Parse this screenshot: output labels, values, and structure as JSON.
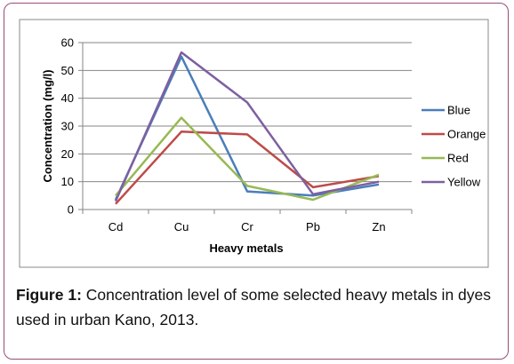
{
  "caption": {
    "label": "Figure 1:",
    "text": " Concentration level of some selected heavy metals in dyes used in urban Kano, 2013."
  },
  "chart_data": {
    "type": "line",
    "title": "",
    "xlabel": "Heavy metals",
    "ylabel": "Concentration (mg/l)",
    "ylim": [
      0,
      60
    ],
    "yticks": [
      0,
      10,
      20,
      30,
      40,
      50,
      60
    ],
    "grid": "horizontal",
    "legend": "right",
    "categories": [
      "Cd",
      "Cu",
      "Cr",
      "Pb",
      "Zn"
    ],
    "series": [
      {
        "name": "Blue",
        "color": "#4a7ebb",
        "values": [
          3.5,
          55,
          6.5,
          5,
          9
        ]
      },
      {
        "name": "Orange",
        "color": "#be4b48",
        "values": [
          2,
          28,
          27,
          8,
          12
        ]
      },
      {
        "name": "Red",
        "color": "#98b954",
        "values": [
          5,
          33,
          8.5,
          3.5,
          12.5
        ]
      },
      {
        "name": "Yellow",
        "color": "#7d60a0",
        "values": [
          3,
          56.5,
          38.5,
          5.5,
          10
        ]
      }
    ]
  }
}
